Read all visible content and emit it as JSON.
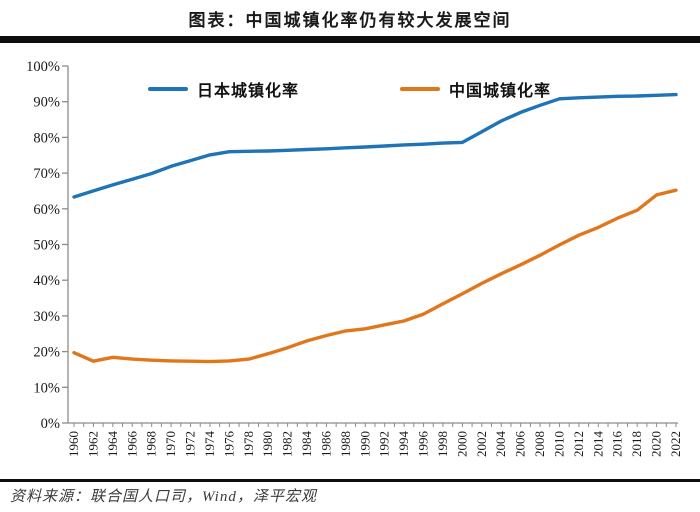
{
  "title": "图表：中国城镇化率仍有较大发展空间",
  "source_note": "资料来源：联合国人口司，Wind，泽平宏观",
  "legend": {
    "items": [
      {
        "label": "日本城镇化率",
        "color": "#1F74B8"
      },
      {
        "label": "中国城镇化率",
        "color": "#E2761B"
      }
    ]
  },
  "axes": {
    "y_tick_labels": [
      "0%",
      "10%",
      "20%",
      "30%",
      "40%",
      "50%",
      "60%",
      "70%",
      "80%",
      "90%",
      "100%"
    ],
    "axis_color": "#8c8c8c",
    "label_color": "#1a1a1a"
  },
  "chart_data": {
    "type": "line",
    "title": "图表：中国城镇化率仍有较大发展空间",
    "xlabel": "",
    "ylabel": "",
    "ylim": [
      0,
      100
    ],
    "y_tick_step": 10,
    "grid": false,
    "legend_position": "top-inside",
    "x_label_every_years": 2,
    "categories": [
      1960,
      1962,
      1964,
      1966,
      1968,
      1970,
      1972,
      1974,
      1976,
      1978,
      1980,
      1982,
      1984,
      1986,
      1988,
      1990,
      1992,
      1994,
      1996,
      1998,
      2000,
      2002,
      2004,
      2006,
      2008,
      2010,
      2012,
      2014,
      2016,
      2018,
      2020,
      2022
    ],
    "series": [
      {
        "name": "日本城镇化率",
        "color": "#1F74B8",
        "values": [
          63.3,
          65.0,
          66.7,
          68.3,
          69.9,
          71.9,
          73.5,
          75.1,
          76.0,
          76.1,
          76.2,
          76.4,
          76.6,
          76.8,
          77.1,
          77.3,
          77.6,
          77.9,
          78.1,
          78.4,
          78.6,
          81.6,
          84.6,
          87.0,
          89.0,
          90.8,
          91.1,
          91.3,
          91.5,
          91.6,
          91.8,
          92.0
        ]
      },
      {
        "name": "中国城镇化率",
        "color": "#E2761B",
        "values": [
          19.7,
          17.3,
          18.4,
          17.9,
          17.6,
          17.4,
          17.3,
          17.2,
          17.4,
          17.9,
          19.4,
          21.1,
          23.0,
          24.5,
          25.8,
          26.4,
          27.5,
          28.6,
          30.5,
          33.4,
          36.2,
          39.1,
          41.8,
          44.3,
          47.0,
          49.9,
          52.6,
          54.8,
          57.4,
          59.6,
          63.9,
          65.2
        ]
      }
    ]
  }
}
